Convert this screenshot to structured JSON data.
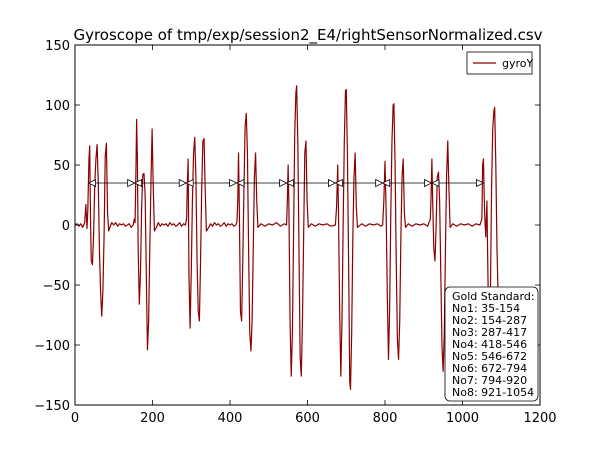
{
  "chart_data": {
    "type": "line",
    "title": "Gyroscope of tmp/exp/session2_E4/rightSensorNormalized.csv",
    "xlim": [
      0,
      1200
    ],
    "ylim": [
      -150,
      150
    ],
    "xticks": [
      0,
      200,
      400,
      600,
      800,
      1000,
      1200
    ],
    "yticks": [
      -150,
      -100,
      -50,
      0,
      50,
      100,
      150
    ],
    "xtick_labels": [
      "0",
      "200",
      "400",
      "600",
      "800",
      "1000",
      "1200"
    ],
    "ytick_labels": [
      "−150",
      "−100",
      "−50",
      "0",
      "50",
      "100",
      "150"
    ],
    "grid": false,
    "legend": {
      "position": "top-right"
    },
    "series": [
      {
        "name": "gyroY",
        "color": "#8b0000",
        "points": [
          [
            0,
            0
          ],
          [
            5,
            1
          ],
          [
            10,
            -1
          ],
          [
            15,
            1
          ],
          [
            20,
            -2
          ],
          [
            25,
            2
          ],
          [
            28,
            17
          ],
          [
            31,
            -3
          ],
          [
            33,
            12
          ],
          [
            36,
            55
          ],
          [
            38,
            66
          ],
          [
            40,
            5
          ],
          [
            42,
            -30
          ],
          [
            45,
            -33
          ],
          [
            48,
            -8
          ],
          [
            51,
            34
          ],
          [
            54,
            55
          ],
          [
            57,
            67
          ],
          [
            60,
            36
          ],
          [
            63,
            -20
          ],
          [
            66,
            -55
          ],
          [
            69,
            -76
          ],
          [
            72,
            -55
          ],
          [
            75,
            -10
          ],
          [
            78,
            57
          ],
          [
            81,
            68
          ],
          [
            84,
            10
          ],
          [
            87,
            -5
          ],
          [
            90,
            -2
          ],
          [
            95,
            2
          ],
          [
            100,
            0
          ],
          [
            105,
            2
          ],
          [
            110,
            -1
          ],
          [
            115,
            1
          ],
          [
            120,
            0
          ],
          [
            125,
            1
          ],
          [
            130,
            -1
          ],
          [
            135,
            0
          ],
          [
            140,
            1
          ],
          [
            145,
            -2
          ],
          [
            150,
            0
          ],
          [
            153,
            5
          ],
          [
            155,
            2
          ],
          [
            157,
            40
          ],
          [
            159,
            88
          ],
          [
            161,
            55
          ],
          [
            163,
            -20
          ],
          [
            166,
            -66
          ],
          [
            169,
            -40
          ],
          [
            172,
            15
          ],
          [
            175,
            42
          ],
          [
            178,
            43
          ],
          [
            181,
            25
          ],
          [
            184,
            -40
          ],
          [
            187,
            -104
          ],
          [
            190,
            -80
          ],
          [
            193,
            -20
          ],
          [
            196,
            35
          ],
          [
            199,
            80
          ],
          [
            202,
            30
          ],
          [
            205,
            -5
          ],
          [
            210,
            -2
          ],
          [
            215,
            2
          ],
          [
            220,
            -1
          ],
          [
            225,
            1
          ],
          [
            230,
            0
          ],
          [
            235,
            1
          ],
          [
            240,
            -1
          ],
          [
            245,
            2
          ],
          [
            250,
            0
          ],
          [
            255,
            1
          ],
          [
            260,
            -1
          ],
          [
            265,
            0
          ],
          [
            270,
            2
          ],
          [
            275,
            -1
          ],
          [
            280,
            1
          ],
          [
            285,
            0
          ],
          [
            288,
            5
          ],
          [
            290,
            35
          ],
          [
            292,
            55
          ],
          [
            294,
            -40
          ],
          [
            297,
            -86
          ],
          [
            300,
            -40
          ],
          [
            303,
            20
          ],
          [
            306,
            60
          ],
          [
            309,
            73
          ],
          [
            312,
            40
          ],
          [
            315,
            -30
          ],
          [
            318,
            -72
          ],
          [
            321,
            -80
          ],
          [
            324,
            -30
          ],
          [
            327,
            30
          ],
          [
            330,
            70
          ],
          [
            333,
            72
          ],
          [
            336,
            30
          ],
          [
            339,
            -5
          ],
          [
            345,
            -2
          ],
          [
            350,
            1
          ],
          [
            355,
            -1
          ],
          [
            360,
            2
          ],
          [
            365,
            0
          ],
          [
            370,
            1
          ],
          [
            375,
            -1
          ],
          [
            380,
            0
          ],
          [
            385,
            2
          ],
          [
            390,
            -1
          ],
          [
            395,
            1
          ],
          [
            400,
            0
          ],
          [
            405,
            1
          ],
          [
            410,
            -1
          ],
          [
            415,
            0
          ],
          [
            418,
            3
          ],
          [
            420,
            20
          ],
          [
            422,
            60
          ],
          [
            424,
            15
          ],
          [
            427,
            -72
          ],
          [
            430,
            -80
          ],
          [
            433,
            -30
          ],
          [
            436,
            30
          ],
          [
            439,
            82
          ],
          [
            442,
            93
          ],
          [
            445,
            60
          ],
          [
            448,
            -20
          ],
          [
            451,
            -90
          ],
          [
            454,
            -105
          ],
          [
            457,
            -80
          ],
          [
            460,
            -20
          ],
          [
            463,
            40
          ],
          [
            466,
            60
          ],
          [
            469,
            20
          ],
          [
            472,
            -2
          ],
          [
            480,
            1
          ],
          [
            490,
            -1
          ],
          [
            500,
            1
          ],
          [
            510,
            0
          ],
          [
            520,
            2
          ],
          [
            530,
            -1
          ],
          [
            540,
            1
          ],
          [
            546,
            0
          ],
          [
            548,
            20
          ],
          [
            550,
            50
          ],
          [
            552,
            15
          ],
          [
            555,
            -80
          ],
          [
            558,
            -126
          ],
          [
            561,
            -90
          ],
          [
            564,
            -10
          ],
          [
            567,
            75
          ],
          [
            570,
            110
          ],
          [
            572,
            116
          ],
          [
            575,
            70
          ],
          [
            578,
            -20
          ],
          [
            581,
            -110
          ],
          [
            584,
            -126
          ],
          [
            587,
            -80
          ],
          [
            590,
            -10
          ],
          [
            593,
            60
          ],
          [
            596,
            70
          ],
          [
            599,
            20
          ],
          [
            602,
            -2
          ],
          [
            610,
            1
          ],
          [
            620,
            -1
          ],
          [
            630,
            1
          ],
          [
            640,
            0
          ],
          [
            650,
            1
          ],
          [
            660,
            -1
          ],
          [
            672,
            0
          ],
          [
            675,
            15
          ],
          [
            678,
            50
          ],
          [
            680,
            10
          ],
          [
            683,
            -70
          ],
          [
            686,
            -126
          ],
          [
            689,
            -80
          ],
          [
            692,
            0
          ],
          [
            695,
            70
          ],
          [
            698,
            112
          ],
          [
            700,
            113
          ],
          [
            703,
            60
          ],
          [
            706,
            -30
          ],
          [
            709,
            -130
          ],
          [
            711,
            -137
          ],
          [
            714,
            -90
          ],
          [
            717,
            -10
          ],
          [
            720,
            40
          ],
          [
            723,
            60
          ],
          [
            726,
            15
          ],
          [
            729,
            -2
          ],
          [
            740,
            1
          ],
          [
            750,
            -1
          ],
          [
            760,
            1
          ],
          [
            770,
            0
          ],
          [
            780,
            1
          ],
          [
            790,
            -1
          ],
          [
            794,
            0
          ],
          [
            797,
            20
          ],
          [
            800,
            53
          ],
          [
            803,
            10
          ],
          [
            806,
            -60
          ],
          [
            809,
            -112
          ],
          [
            812,
            -70
          ],
          [
            815,
            10
          ],
          [
            818,
            70
          ],
          [
            821,
            100
          ],
          [
            823,
            101
          ],
          [
            826,
            50
          ],
          [
            829,
            -30
          ],
          [
            832,
            -95
          ],
          [
            835,
            -112
          ],
          [
            838,
            -80
          ],
          [
            841,
            -10
          ],
          [
            844,
            40
          ],
          [
            847,
            55
          ],
          [
            850,
            10
          ],
          [
            853,
            -2
          ],
          [
            860,
            1
          ],
          [
            870,
            -1
          ],
          [
            880,
            1
          ],
          [
            890,
            0
          ],
          [
            900,
            1
          ],
          [
            910,
            -1
          ],
          [
            917,
            5
          ],
          [
            919,
            25
          ],
          [
            921,
            55
          ],
          [
            923,
            20
          ],
          [
            926,
            -20
          ],
          [
            929,
            -30
          ],
          [
            932,
            0
          ],
          [
            935,
            40
          ],
          [
            938,
            44
          ],
          [
            941,
            20
          ],
          [
            944,
            -40
          ],
          [
            947,
            -100
          ],
          [
            950,
            -122
          ],
          [
            953,
            -90
          ],
          [
            956,
            -20
          ],
          [
            959,
            42
          ],
          [
            962,
            70
          ],
          [
            965,
            30
          ],
          [
            968,
            -2
          ],
          [
            975,
            1
          ],
          [
            985,
            -1
          ],
          [
            995,
            1
          ],
          [
            1005,
            0
          ],
          [
            1015,
            1
          ],
          [
            1025,
            -1
          ],
          [
            1035,
            1
          ],
          [
            1045,
            0
          ],
          [
            1050,
            5
          ],
          [
            1052,
            50
          ],
          [
            1054,
            55
          ],
          [
            1057,
            10
          ],
          [
            1060,
            -10
          ],
          [
            1063,
            20
          ],
          [
            1066,
            -50
          ],
          [
            1069,
            -125
          ],
          [
            1072,
            -60
          ],
          [
            1075,
            30
          ],
          [
            1078,
            80
          ],
          [
            1081,
            95
          ],
          [
            1083,
            98
          ],
          [
            1086,
            50
          ],
          [
            1089,
            -20
          ],
          [
            1092,
            -60
          ]
        ]
      }
    ],
    "annotations": {
      "arrow_y": 35,
      "intervals": [
        [
          35,
          154
        ],
        [
          154,
          287
        ],
        [
          287,
          417
        ],
        [
          418,
          546
        ],
        [
          546,
          672
        ],
        [
          672,
          794
        ],
        [
          794,
          920
        ],
        [
          921,
          1054
        ]
      ]
    },
    "gold_standard": {
      "title": "Gold Standard:",
      "lines": [
        "No1: 35-154",
        "No2: 154-287",
        "No3: 287-417",
        "No4: 418-546",
        "No5: 546-672",
        "No6: 672-794",
        "No7: 794-920",
        "No8: 921-1054"
      ]
    }
  }
}
